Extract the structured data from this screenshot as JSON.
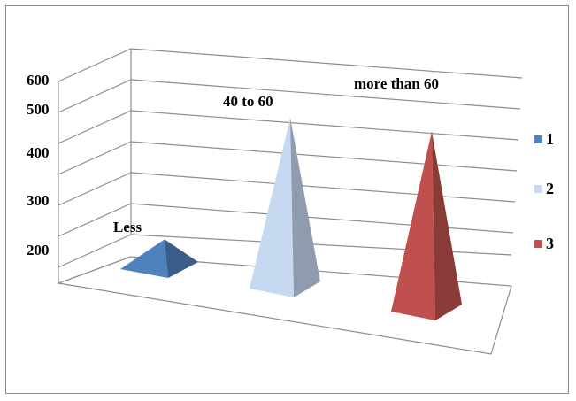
{
  "chart_data": {
    "type": "bar",
    "style": "3d-pyramid",
    "categories": [
      "1",
      "2",
      "3"
    ],
    "values": [
      250,
      470,
      490
    ],
    "data_labels": [
      "Less",
      "40 to 60",
      "more than 60"
    ],
    "y_ticks": [
      "200",
      "300",
      "400",
      "500",
      "600"
    ],
    "ylim": [
      100,
      600
    ],
    "legend": {
      "position": "right",
      "entries": [
        "1",
        "2",
        "3"
      ]
    },
    "grid": true,
    "colors": [
      "#4f81bd",
      "#c6d9f1",
      "#c0504d"
    ]
  }
}
